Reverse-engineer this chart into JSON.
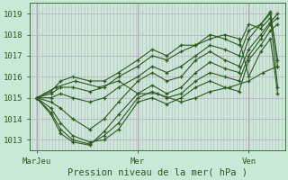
{
  "xlabel": "Pression niveau de la mer( hPa )",
  "bg_color": "#c8e8d8",
  "plot_bg_color": "#c8e8d8",
  "line_color": "#2d5a1e",
  "ylim": [
    1012.5,
    1019.5
  ],
  "yticks": [
    1013,
    1014,
    1015,
    1016,
    1017,
    1018,
    1019
  ],
  "xtick_labels": [
    "MarJeu",
    "Mer",
    "Ven"
  ],
  "xtick_positions": [
    0.0,
    0.42,
    0.88
  ],
  "xlim": [
    -0.03,
    1.03
  ],
  "lines": [
    {
      "x": [
        0.0,
        0.06,
        0.1,
        0.15,
        0.22,
        0.28,
        0.34,
        0.42,
        0.48,
        0.54,
        0.6,
        0.66,
        0.72,
        0.78,
        0.84,
        0.88,
        0.93,
        0.97,
        1.0
      ],
      "y": [
        1015.0,
        1014.5,
        1013.8,
        1013.2,
        1012.9,
        1013.0,
        1013.5,
        1014.8,
        1015.0,
        1014.7,
        1015.0,
        1015.5,
        1015.8,
        1015.5,
        1015.3,
        1016.8,
        1017.5,
        1018.2,
        1018.5
      ]
    },
    {
      "x": [
        0.0,
        0.06,
        0.1,
        0.15,
        0.22,
        0.28,
        0.34,
        0.42,
        0.48,
        0.54,
        0.6,
        0.66,
        0.72,
        0.78,
        0.84,
        0.88,
        0.93,
        0.97,
        1.0
      ],
      "y": [
        1015.0,
        1014.3,
        1013.5,
        1013.0,
        1012.8,
        1013.2,
        1013.8,
        1015.0,
        1015.3,
        1015.0,
        1015.2,
        1015.8,
        1016.2,
        1016.0,
        1015.8,
        1017.0,
        1017.8,
        1018.5,
        1018.8
      ]
    },
    {
      "x": [
        0.0,
        0.06,
        0.1,
        0.15,
        0.22,
        0.28,
        0.34,
        0.42,
        0.48,
        0.54,
        0.6,
        0.66,
        0.72,
        0.78,
        0.84,
        0.88,
        0.93,
        0.97,
        1.0
      ],
      "y": [
        1015.0,
        1014.2,
        1013.3,
        1012.9,
        1012.75,
        1013.4,
        1014.2,
        1015.2,
        1015.6,
        1015.2,
        1015.5,
        1016.2,
        1016.7,
        1016.4,
        1016.2,
        1017.3,
        1018.0,
        1018.6,
        1019.0
      ]
    },
    {
      "x": [
        0.0,
        0.06,
        0.1,
        0.15,
        0.22,
        0.28,
        0.34,
        0.42,
        0.48,
        0.54,
        0.6,
        0.66,
        0.72,
        0.78,
        0.84,
        0.88,
        0.93,
        0.97,
        1.0
      ],
      "y": [
        1015.0,
        1014.8,
        1014.5,
        1014.0,
        1013.5,
        1014.0,
        1014.8,
        1015.8,
        1016.2,
        1015.8,
        1016.0,
        1016.8,
        1017.2,
        1016.8,
        1016.5,
        1017.8,
        1018.5,
        1019.0,
        1016.8
      ]
    },
    {
      "x": [
        0.0,
        0.06,
        0.1,
        0.15,
        0.22,
        0.28,
        0.34,
        0.42,
        0.48,
        0.54,
        0.6,
        0.66,
        0.72,
        0.78,
        0.84,
        0.88,
        0.93,
        0.97,
        1.0
      ],
      "y": [
        1015.0,
        1015.0,
        1015.2,
        1015.0,
        1014.8,
        1015.0,
        1015.5,
        1016.0,
        1016.5,
        1016.2,
        1016.5,
        1017.0,
        1017.5,
        1017.3,
        1017.0,
        1018.2,
        1018.5,
        1019.1,
        1016.5
      ]
    },
    {
      "x": [
        0.0,
        0.06,
        0.1,
        0.15,
        0.22,
        0.28,
        0.34,
        0.42,
        0.48,
        0.54,
        0.6,
        0.66,
        0.72,
        0.78,
        0.84,
        0.88,
        0.93,
        0.97,
        1.0
      ],
      "y": [
        1015.0,
        1015.2,
        1015.5,
        1015.5,
        1015.3,
        1015.5,
        1016.0,
        1016.5,
        1017.0,
        1016.8,
        1017.2,
        1017.5,
        1018.0,
        1017.8,
        1017.5,
        1018.5,
        1018.3,
        1018.8,
        1015.5
      ]
    },
    {
      "x": [
        0.0,
        0.06,
        0.1,
        0.15,
        0.22,
        0.28,
        0.34,
        0.42,
        0.48,
        0.54,
        0.6,
        0.66,
        0.72,
        0.78,
        0.84,
        0.88,
        0.93,
        0.97,
        1.0
      ],
      "y": [
        1015.0,
        1015.3,
        1015.8,
        1016.0,
        1015.8,
        1015.8,
        1016.2,
        1016.8,
        1017.3,
        1017.0,
        1017.5,
        1017.5,
        1017.8,
        1018.0,
        1017.8,
        1016.0,
        1017.2,
        1017.8,
        1015.2
      ]
    },
    {
      "x": [
        0.0,
        0.08,
        0.16,
        0.26,
        0.34,
        0.42,
        0.5,
        0.6,
        0.66,
        0.72,
        0.8,
        0.88,
        0.94,
        1.0
      ],
      "y": [
        1015.0,
        1015.5,
        1015.8,
        1015.5,
        1015.8,
        1015.2,
        1015.2,
        1014.8,
        1015.0,
        1015.3,
        1015.5,
        1015.8,
        1016.2,
        1016.5
      ]
    }
  ],
  "vgrid_major_color": "#b898b8",
  "vgrid_minor_color": "#c8a8c0",
  "hgrid_color": "#c0a8c0",
  "xlabel_fontsize": 7.5,
  "tick_fontsize": 6.5
}
